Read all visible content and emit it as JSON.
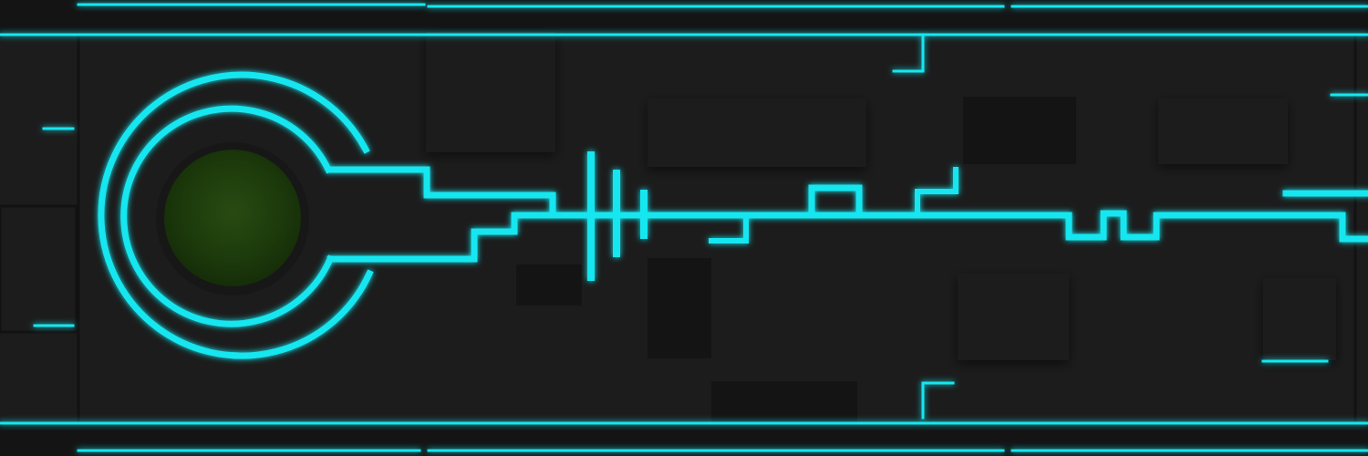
{
  "scene": {
    "subject": "",
    "colors": {
      "background": "#151515",
      "panel": "#1c1c1c",
      "panel_shadow": "#101010",
      "neon": "#18e6ef",
      "neon_glow": "#00cfe0",
      "core_inner": "#1c3a0b",
      "core_outer": "#284b12"
    }
  }
}
